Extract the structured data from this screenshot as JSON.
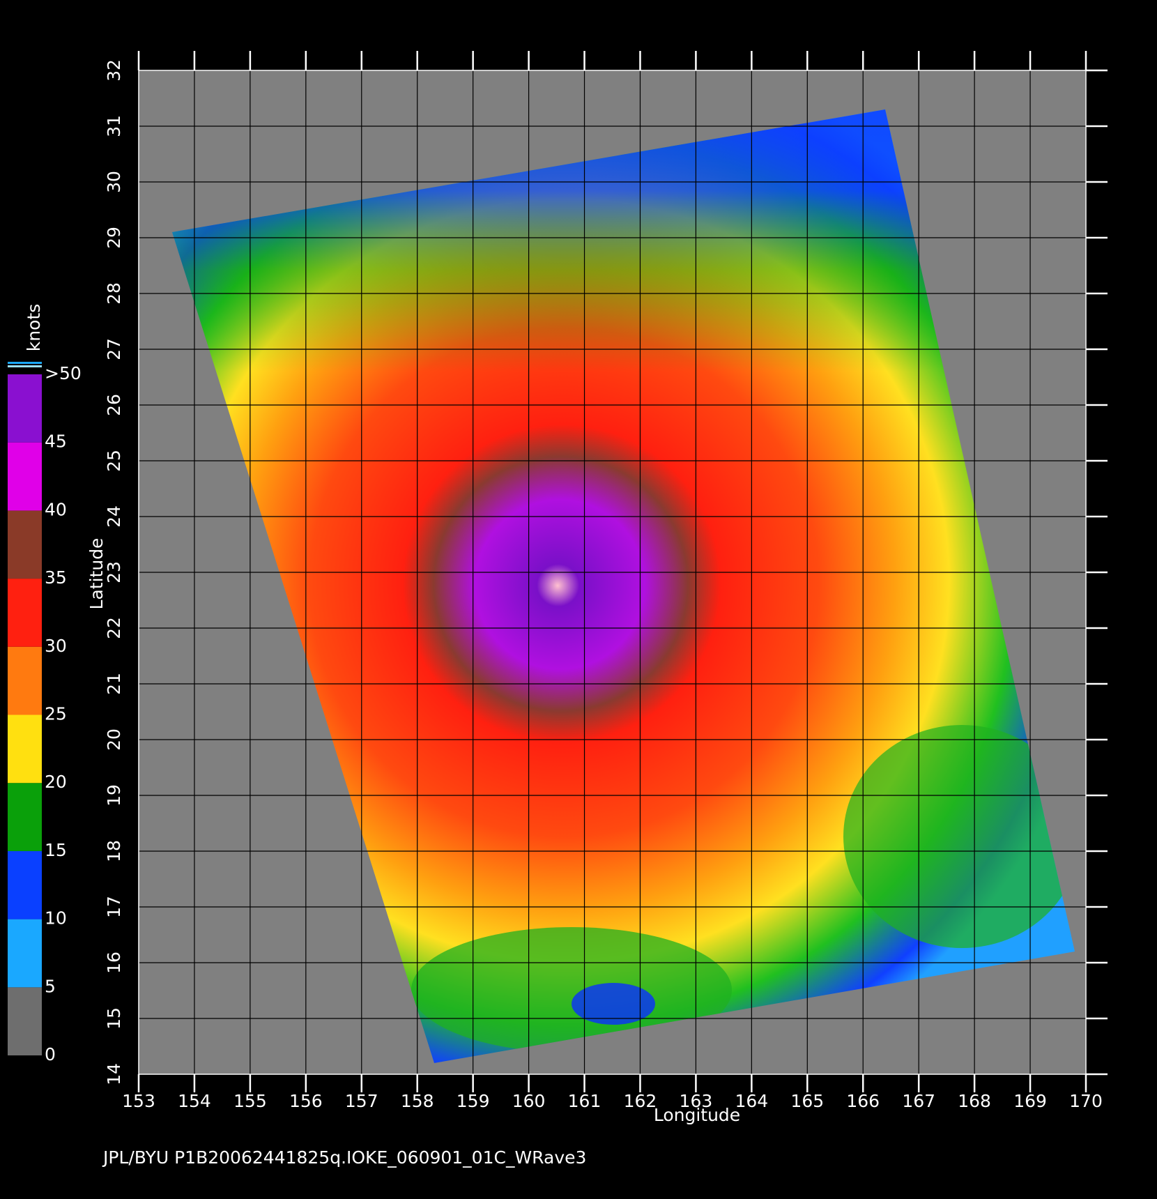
{
  "chart_data": {
    "type": "map",
    "xlabel": "Longitude",
    "ylabel": "Latitude",
    "xlim": [
      153,
      170
    ],
    "ylim": [
      14,
      32
    ],
    "xticks": [
      153,
      154,
      155,
      156,
      157,
      158,
      159,
      160,
      161,
      162,
      163,
      164,
      165,
      166,
      167,
      168,
      169,
      170
    ],
    "yticks": [
      14,
      15,
      16,
      17,
      18,
      19,
      20,
      21,
      22,
      23,
      24,
      25,
      26,
      27,
      28,
      29,
      30,
      31,
      32
    ],
    "grid": true,
    "colorbar": {
      "label": "knots",
      "lim": [
        0,
        50
      ],
      "ticks": [
        0,
        5,
        10,
        15,
        20,
        25,
        30,
        35,
        40,
        45,
        {
          "value": 50,
          "label": ">50"
        }
      ],
      "colors": [
        "#6e6e6e",
        "#1aa8ff",
        "#0a40ff",
        "#0aa00a",
        "#ffe010",
        "#ff7a10",
        "#ff2010",
        "#8a3a28",
        "#e000e8",
        "#8a10d0"
      ]
    },
    "footer": "JPL/BYU  P1B20062441825q.IOKE_060901_01C_WRave3"
  }
}
